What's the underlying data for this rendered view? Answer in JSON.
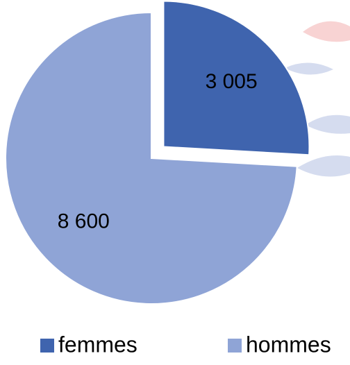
{
  "chart_data": {
    "type": "pie",
    "categories": [
      "femmes",
      "hommes"
    ],
    "values": [
      3005,
      8600
    ],
    "value_labels": [
      "3 005",
      "8 600"
    ],
    "colors": [
      "#3f64ae",
      "#8fa4d6"
    ],
    "exploded": [
      true,
      false
    ],
    "legend": "bottom"
  }
}
